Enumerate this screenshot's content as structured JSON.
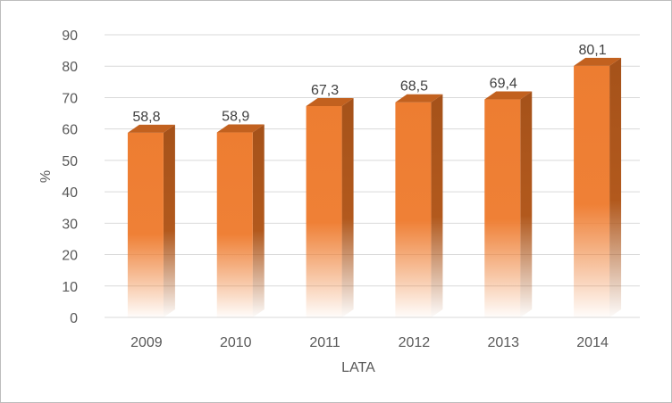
{
  "chart_data": {
    "type": "bar",
    "categories": [
      "2009",
      "2010",
      "2011",
      "2012",
      "2013",
      "2014"
    ],
    "values": [
      58.8,
      58.9,
      67.3,
      68.5,
      69.4,
      80.1
    ],
    "value_labels": [
      "58,8",
      "58,9",
      "67,3",
      "68,5",
      "69,4",
      "80,1"
    ],
    "xlabel": "LATA",
    "ylabel": "%",
    "ylim": [
      0,
      90
    ],
    "yticks": [
      0,
      10,
      20,
      30,
      40,
      50,
      60,
      70,
      80,
      90
    ],
    "grid": true,
    "legend": "none",
    "style": "3d-column",
    "colors": {
      "bar_front": "#ed7d31",
      "bar_side": "#a5521a",
      "bar_top": "#c2611f",
      "gridline": "#d9d9d9",
      "tick_text": "#595959",
      "label_text": "#404040"
    }
  }
}
